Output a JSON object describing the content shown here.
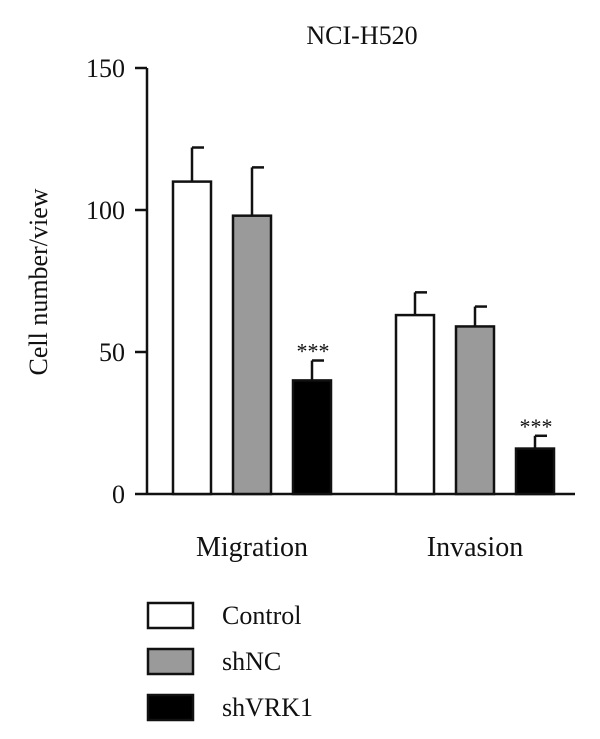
{
  "chart_data": {
    "type": "bar",
    "title": "NCI-H520",
    "xlabel": "",
    "ylabel": "Cell number/view",
    "ylim": [
      0,
      150
    ],
    "yticks": [
      0,
      50,
      100,
      150
    ],
    "categories": [
      "Migration",
      "Invasion"
    ],
    "series": [
      {
        "name": "Control",
        "color": "#ffffff",
        "values": [
          110,
          63
        ],
        "errors": [
          12,
          8
        ],
        "annotations": [
          "",
          ""
        ]
      },
      {
        "name": "shNC",
        "color": "#9a9a9a",
        "values": [
          98,
          59
        ],
        "errors": [
          17,
          7
        ],
        "annotations": [
          "",
          ""
        ]
      },
      {
        "name": "shVRK1",
        "color": "#000000",
        "values": [
          40,
          16
        ],
        "errors": [
          7,
          4.5
        ],
        "annotations": [
          "***",
          "***"
        ]
      }
    ],
    "legend_position": "bottom-left",
    "grid": false
  }
}
